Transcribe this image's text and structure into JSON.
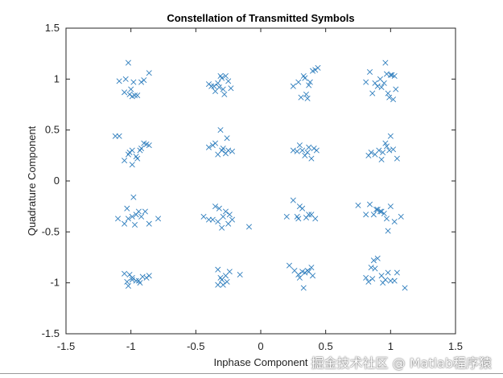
{
  "chart_data": {
    "type": "scatter",
    "title": "Constellation of Transmitted Symbols",
    "xlabel": "Inphase Component",
    "ylabel": "Quadrature Component",
    "xlim": [
      -1.5,
      1.5
    ],
    "ylim": [
      -1.5,
      1.5
    ],
    "xticks": [
      "-1.5",
      "-1",
      "-0.5",
      "0",
      "0.5",
      "1",
      "1.5"
    ],
    "yticks": [
      "-1.5",
      "-1",
      "-0.5",
      "0",
      "0.5",
      "1",
      "1.5"
    ],
    "grid": false,
    "legend": "none",
    "marker": "x",
    "marker_color": "#2f7ebd",
    "series": [
      {
        "x": [
          -1.02,
          -0.98,
          -0.95,
          -1.05,
          -0.9,
          -0.86,
          -1.09,
          -0.99,
          -1.01,
          -0.97,
          -1.0,
          -0.92,
          -1.04,
          -0.36,
          -0.3,
          -0.25,
          -0.29,
          -0.33,
          -0.38,
          -0.27,
          -0.4,
          -0.23,
          -0.31,
          -0.28,
          -0.35,
          -0.32,
          0.29,
          0.33,
          0.38,
          0.42,
          0.35,
          0.31,
          0.25,
          0.36,
          0.4,
          0.34,
          0.44,
          0.37,
          0.96,
          1.03,
          1.0,
          0.88,
          0.92,
          1.04,
          0.86,
          0.99,
          1.02,
          0.93,
          0.81,
          0.98,
          0.84,
          0.9,
          1.01,
          0.95,
          0.97
        ],
        "y": [
          1.16,
          0.97,
          0.84,
          0.87,
          0.99,
          1.06,
          0.98,
          0.83,
          0.85,
          0.84,
          0.9,
          0.97,
          1.0,
          0.93,
          1.01,
          0.98,
          0.9,
          0.96,
          0.93,
          1.03,
          0.95,
          0.91,
          1.03,
          0.85,
          0.88,
          0.92,
          0.97,
          1.03,
          0.97,
          1.09,
          0.85,
          0.82,
          0.93,
          0.81,
          1.08,
          1.01,
          1.11,
          0.94,
          1.16,
          1.03,
          1.04,
          0.96,
          1.0,
          0.9,
          0.86,
          0.82,
          0.8,
          0.92,
          0.97,
          0.86,
          1.07,
          0.93,
          1.04,
          0.96,
          1.05
        ]
      },
      {
        "x": [
          -1.09,
          -1.12,
          -1.02,
          -0.99,
          -0.95,
          -1.05,
          -0.9,
          -0.86,
          -0.93,
          -0.99,
          -1.01,
          -0.96,
          -0.88,
          -0.92,
          -0.37,
          -0.31,
          -0.26,
          -0.29,
          -0.33,
          -0.4,
          -0.27,
          -0.25,
          -0.35,
          -0.3,
          -0.22,
          0.3,
          0.36,
          0.41,
          0.34,
          0.32,
          0.28,
          0.43,
          0.37,
          0.39,
          0.25,
          0.85,
          0.91,
          0.96,
          1.0,
          0.88,
          0.93,
          1.02,
          0.97,
          0.83,
          0.94,
          1.05,
          0.99
        ],
        "y": [
          0.44,
          0.44,
          0.26,
          0.3,
          0.22,
          0.2,
          0.37,
          0.35,
          0.3,
          0.16,
          0.28,
          0.24,
          0.36,
          0.32,
          0.35,
          0.5,
          0.42,
          0.32,
          0.26,
          0.33,
          0.27,
          0.3,
          0.37,
          0.3,
          0.29,
          0.35,
          0.28,
          0.32,
          0.25,
          0.3,
          0.29,
          0.3,
          0.33,
          0.22,
          0.3,
          0.28,
          0.3,
          0.37,
          0.44,
          0.26,
          0.21,
          0.31,
          0.34,
          0.25,
          0.28,
          0.22,
          0.3
        ],
        "_unused": []
      },
      {
        "x": [
          -0.98,
          -0.94,
          -1.02,
          -1.05,
          -0.89,
          -0.86,
          -1.1,
          -0.99,
          -0.97,
          -1.03,
          -0.92,
          -0.79,
          -0.96,
          -0.44,
          -0.37,
          -0.32,
          -0.27,
          -0.25,
          -0.29,
          -0.3,
          -0.35,
          -0.4,
          -0.33,
          -0.22,
          -0.24,
          -0.09,
          0.25,
          0.28,
          0.3,
          0.35,
          0.39,
          0.32,
          0.42,
          0.2,
          0.37,
          0.29,
          0.75,
          0.84,
          0.9,
          0.95,
          1.0,
          0.87,
          0.92,
          1.08,
          0.98,
          0.81,
          0.93,
          0.97,
          1.03,
          0.89
        ],
        "y": [
          -0.16,
          -0.3,
          -0.37,
          -0.42,
          -0.3,
          -0.42,
          -0.37,
          -0.35,
          -0.43,
          -0.27,
          -0.35,
          -0.37,
          -0.33,
          -0.35,
          -0.38,
          -0.27,
          -0.3,
          -0.42,
          -0.35,
          -0.46,
          -0.25,
          -0.38,
          -0.4,
          -0.38,
          -0.33,
          -0.45,
          -0.19,
          -0.35,
          -0.25,
          -0.36,
          -0.33,
          -0.27,
          -0.37,
          -0.35,
          -0.33,
          -0.37,
          -0.24,
          -0.23,
          -0.28,
          -0.32,
          -0.25,
          -0.33,
          -0.3,
          -0.35,
          -0.49,
          -0.33,
          -0.3,
          -0.37,
          -0.4,
          -0.28
        ],
        "_unused": []
      },
      {
        "x": [
          -1.05,
          -0.99,
          -0.96,
          -1.02,
          -0.91,
          -0.86,
          -1.03,
          -0.99,
          -0.93,
          -0.88,
          -0.94,
          -1.01,
          -0.33,
          -0.31,
          -0.27,
          -0.29,
          -0.33,
          -0.26,
          -0.24,
          -0.16,
          -0.3,
          0.22,
          0.32,
          0.34,
          0.37,
          0.29,
          0.4,
          0.36,
          0.33,
          0.39,
          0.26,
          0.3,
          0.87,
          0.9,
          0.81,
          0.96,
          1.0,
          1.05,
          0.94,
          0.93,
          0.86,
          1.03,
          0.85,
          0.83,
          1.11,
          0.98,
          0.88
        ],
        "y": [
          -0.91,
          -0.95,
          -0.98,
          -1.03,
          -0.94,
          -0.93,
          -0.99,
          -0.97,
          -1.0,
          -0.95,
          -0.98,
          -0.92,
          -0.87,
          -0.95,
          -0.93,
          -1.02,
          -1.02,
          -0.99,
          -0.89,
          -0.92,
          -0.97,
          -0.83,
          -0.89,
          -0.9,
          -0.89,
          -0.92,
          -0.93,
          -0.88,
          -1.05,
          -0.85,
          -0.88,
          -0.95,
          -0.78,
          -0.76,
          -0.95,
          -0.97,
          -0.98,
          -0.9,
          -1.0,
          -0.93,
          -0.96,
          -0.98,
          -0.85,
          -0.99,
          -1.05,
          -0.9,
          -0.86
        ],
        "_unused": []
      }
    ],
    "watermark": "掘金技术社区 @ Matlab程序猿"
  }
}
